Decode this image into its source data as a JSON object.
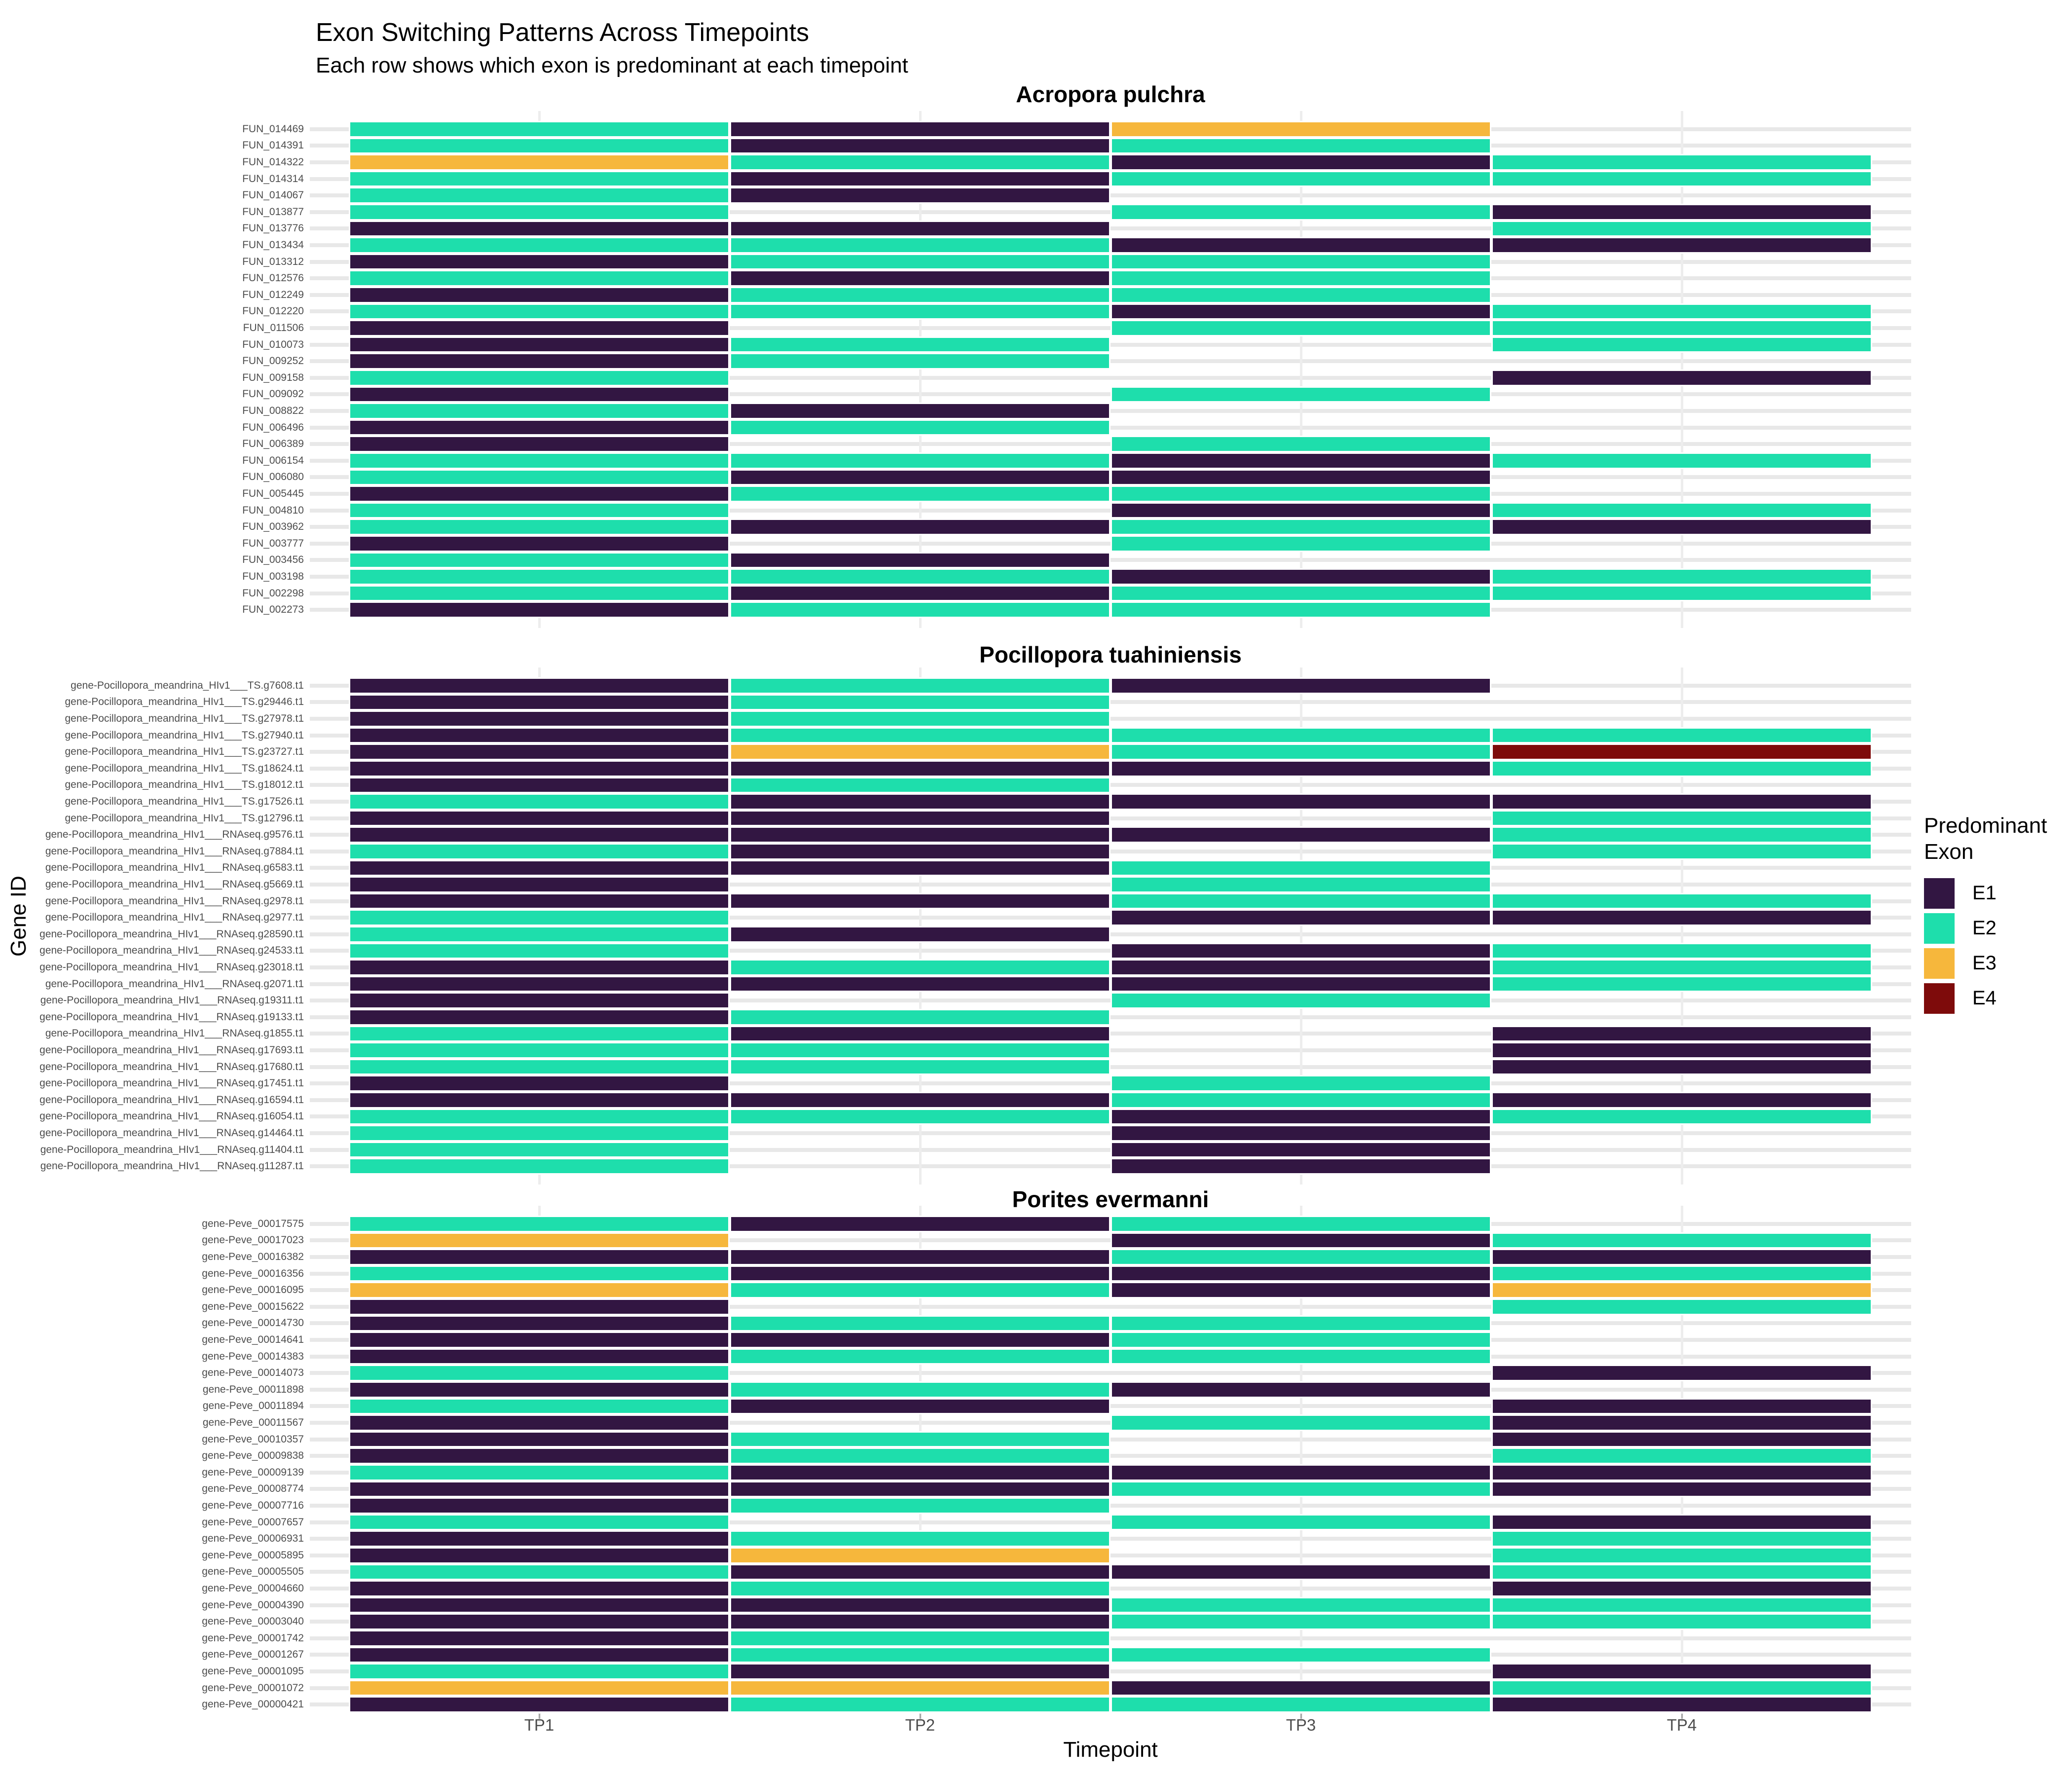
{
  "title": "Exon Switching Patterns Across Timepoints",
  "subtitle": "Each row shows which exon is predominant at each timepoint",
  "x_axis": {
    "title": "Timepoint",
    "ticks": [
      "TP1",
      "TP2",
      "TP3",
      "TP4"
    ]
  },
  "y_axis": {
    "title": "Gene ID"
  },
  "palette": {
    "E1": "#321642",
    "E2": "#1EDEAC",
    "E3": "#F6B73C",
    "E4": "#7E0B0B"
  },
  "grid_colors": {
    "horizontal": "#e8e8e8",
    "vertical": "#ededed"
  },
  "legend": {
    "title": "Predominant Exon",
    "entries": [
      {
        "label": "E1",
        "color": "#321642"
      },
      {
        "label": "E2",
        "color": "#1EDEAC"
      },
      {
        "label": "E3",
        "color": "#F6B73C"
      },
      {
        "label": "E4",
        "color": "#7E0B0B"
      }
    ]
  },
  "chart_data": {
    "type": "heatmap",
    "x": [
      "TP1",
      "TP2",
      "TP3",
      "TP4"
    ],
    "xlabel": "Timepoint",
    "ylabel": "Gene ID",
    "legend_title": "Predominant Exon",
    "legend_position": "right",
    "categories": [
      "E1",
      "E2",
      "E3",
      "E4"
    ],
    "missing_cells": "blank (no tile, gridlines visible)",
    "panels": [
      {
        "title": "Acropora pulchra",
        "rows": [
          {
            "gene": "FUN_014469",
            "values": [
              "E2",
              "E1",
              "E3",
              null
            ]
          },
          {
            "gene": "FUN_014391",
            "values": [
              "E2",
              "E1",
              "E2",
              null
            ]
          },
          {
            "gene": "FUN_014322",
            "values": [
              "E3",
              "E2",
              "E1",
              "E2"
            ]
          },
          {
            "gene": "FUN_014314",
            "values": [
              "E2",
              "E1",
              "E2",
              "E2"
            ]
          },
          {
            "gene": "FUN_014067",
            "values": [
              "E2",
              "E1",
              null,
              null
            ]
          },
          {
            "gene": "FUN_013877",
            "values": [
              "E2",
              null,
              "E2",
              "E1"
            ]
          },
          {
            "gene": "FUN_013776",
            "values": [
              "E1",
              "E1",
              null,
              "E2"
            ]
          },
          {
            "gene": "FUN_013434",
            "values": [
              "E2",
              "E2",
              "E1",
              "E1"
            ]
          },
          {
            "gene": "FUN_013312",
            "values": [
              "E1",
              "E2",
              "E2",
              null
            ]
          },
          {
            "gene": "FUN_012576",
            "values": [
              "E2",
              "E1",
              "E2",
              null
            ]
          },
          {
            "gene": "FUN_012249",
            "values": [
              "E1",
              "E2",
              "E2",
              null
            ]
          },
          {
            "gene": "FUN_012220",
            "values": [
              "E2",
              "E2",
              "E1",
              "E2"
            ]
          },
          {
            "gene": "FUN_011506",
            "values": [
              "E1",
              null,
              "E2",
              "E2"
            ]
          },
          {
            "gene": "FUN_010073",
            "values": [
              "E1",
              "E2",
              null,
              "E2"
            ]
          },
          {
            "gene": "FUN_009252",
            "values": [
              "E1",
              "E2",
              null,
              null
            ]
          },
          {
            "gene": "FUN_009158",
            "values": [
              "E2",
              null,
              null,
              "E1"
            ]
          },
          {
            "gene": "FUN_009092",
            "values": [
              "E1",
              null,
              "E2",
              null
            ]
          },
          {
            "gene": "FUN_008822",
            "values": [
              "E2",
              "E1",
              null,
              null
            ]
          },
          {
            "gene": "FUN_006496",
            "values": [
              "E1",
              "E2",
              null,
              null
            ]
          },
          {
            "gene": "FUN_006389",
            "values": [
              "E1",
              null,
              "E2",
              null
            ]
          },
          {
            "gene": "FUN_006154",
            "values": [
              "E2",
              "E2",
              "E1",
              "E2"
            ]
          },
          {
            "gene": "FUN_006080",
            "values": [
              "E2",
              "E1",
              "E1",
              null
            ]
          },
          {
            "gene": "FUN_005445",
            "values": [
              "E1",
              "E2",
              "E2",
              null
            ]
          },
          {
            "gene": "FUN_004810",
            "values": [
              "E2",
              null,
              "E1",
              "E2"
            ]
          },
          {
            "gene": "FUN_003962",
            "values": [
              "E2",
              "E1",
              "E2",
              "E1"
            ]
          },
          {
            "gene": "FUN_003777",
            "values": [
              "E1",
              null,
              "E2",
              null
            ]
          },
          {
            "gene": "FUN_003456",
            "values": [
              "E2",
              "E1",
              null,
              null
            ]
          },
          {
            "gene": "FUN_003198",
            "values": [
              "E2",
              "E2",
              "E1",
              "E2"
            ]
          },
          {
            "gene": "FUN_002298",
            "values": [
              "E2",
              "E1",
              "E2",
              "E2"
            ]
          },
          {
            "gene": "FUN_002273",
            "values": [
              "E1",
              "E2",
              "E2",
              null
            ]
          }
        ]
      },
      {
        "title": "Pocillopora tuahiniensis",
        "rows": [
          {
            "gene": "gene-Pocillopora_meandrina_HIv1___TS.g7608.t1",
            "values": [
              "E1",
              "E2",
              "E1",
              null
            ]
          },
          {
            "gene": "gene-Pocillopora_meandrina_HIv1___TS.g29446.t1",
            "values": [
              "E1",
              "E2",
              null,
              null
            ]
          },
          {
            "gene": "gene-Pocillopora_meandrina_HIv1___TS.g27978.t1",
            "values": [
              "E1",
              "E2",
              null,
              null
            ]
          },
          {
            "gene": "gene-Pocillopora_meandrina_HIv1___TS.g27940.t1",
            "values": [
              "E1",
              "E2",
              "E2",
              "E2"
            ]
          },
          {
            "gene": "gene-Pocillopora_meandrina_HIv1___TS.g23727.t1",
            "values": [
              "E1",
              "E3",
              "E2",
              "E4"
            ]
          },
          {
            "gene": "gene-Pocillopora_meandrina_HIv1___TS.g18624.t1",
            "values": [
              "E1",
              "E1",
              "E1",
              "E2"
            ]
          },
          {
            "gene": "gene-Pocillopora_meandrina_HIv1___TS.g18012.t1",
            "values": [
              "E1",
              "E2",
              null,
              null
            ]
          },
          {
            "gene": "gene-Pocillopora_meandrina_HIv1___TS.g17526.t1",
            "values": [
              "E2",
              "E1",
              "E1",
              "E1"
            ]
          },
          {
            "gene": "gene-Pocillopora_meandrina_HIv1___TS.g12796.t1",
            "values": [
              "E1",
              "E1",
              null,
              "E2"
            ]
          },
          {
            "gene": "gene-Pocillopora_meandrina_HIv1___RNAseq.g9576.t1",
            "values": [
              "E1",
              "E1",
              "E1",
              "E2"
            ]
          },
          {
            "gene": "gene-Pocillopora_meandrina_HIv1___RNAseq.g7884.t1",
            "values": [
              "E2",
              "E1",
              null,
              "E2"
            ]
          },
          {
            "gene": "gene-Pocillopora_meandrina_HIv1___RNAseq.g6583.t1",
            "values": [
              "E1",
              "E1",
              "E2",
              null
            ]
          },
          {
            "gene": "gene-Pocillopora_meandrina_HIv1___RNAseq.g5669.t1",
            "values": [
              "E1",
              null,
              "E2",
              null
            ]
          },
          {
            "gene": "gene-Pocillopora_meandrina_HIv1___RNAseq.g2978.t1",
            "values": [
              "E1",
              "E1",
              "E2",
              "E2"
            ]
          },
          {
            "gene": "gene-Pocillopora_meandrina_HIv1___RNAseq.g2977.t1",
            "values": [
              "E2",
              null,
              "E1",
              "E1"
            ]
          },
          {
            "gene": "gene-Pocillopora_meandrina_HIv1___RNAseq.g28590.t1",
            "values": [
              "E2",
              "E1",
              null,
              null
            ]
          },
          {
            "gene": "gene-Pocillopora_meandrina_HIv1___RNAseq.g24533.t1",
            "values": [
              "E2",
              null,
              "E1",
              "E2"
            ]
          },
          {
            "gene": "gene-Pocillopora_meandrina_HIv1___RNAseq.g23018.t1",
            "values": [
              "E1",
              "E2",
              "E1",
              "E2"
            ]
          },
          {
            "gene": "gene-Pocillopora_meandrina_HIv1___RNAseq.g2071.t1",
            "values": [
              "E1",
              "E1",
              "E1",
              "E2"
            ]
          },
          {
            "gene": "gene-Pocillopora_meandrina_HIv1___RNAseq.g19311.t1",
            "values": [
              "E1",
              null,
              "E2",
              null
            ]
          },
          {
            "gene": "gene-Pocillopora_meandrina_HIv1___RNAseq.g19133.t1",
            "values": [
              "E1",
              "E2",
              null,
              null
            ]
          },
          {
            "gene": "gene-Pocillopora_meandrina_HIv1___RNAseq.g1855.t1",
            "values": [
              "E2",
              "E1",
              null,
              "E1"
            ]
          },
          {
            "gene": "gene-Pocillopora_meandrina_HIv1___RNAseq.g17693.t1",
            "values": [
              "E2",
              "E2",
              null,
              "E1"
            ]
          },
          {
            "gene": "gene-Pocillopora_meandrina_HIv1___RNAseq.g17680.t1",
            "values": [
              "E2",
              "E2",
              null,
              "E1"
            ]
          },
          {
            "gene": "gene-Pocillopora_meandrina_HIv1___RNAseq.g17451.t1",
            "values": [
              "E1",
              null,
              "E2",
              null
            ]
          },
          {
            "gene": "gene-Pocillopora_meandrina_HIv1___RNAseq.g16594.t1",
            "values": [
              "E1",
              "E1",
              "E2",
              "E1"
            ]
          },
          {
            "gene": "gene-Pocillopora_meandrina_HIv1___RNAseq.g16054.t1",
            "values": [
              "E2",
              "E2",
              "E1",
              "E2"
            ]
          },
          {
            "gene": "gene-Pocillopora_meandrina_HIv1___RNAseq.g14464.t1",
            "values": [
              "E2",
              null,
              "E1",
              null
            ]
          },
          {
            "gene": "gene-Pocillopora_meandrina_HIv1___RNAseq.g11404.t1",
            "values": [
              "E2",
              null,
              "E1",
              null
            ]
          },
          {
            "gene": "gene-Pocillopora_meandrina_HIv1___RNAseq.g11287.t1",
            "values": [
              "E2",
              null,
              "E1",
              null
            ]
          }
        ]
      },
      {
        "title": "Porites evermanni",
        "rows": [
          {
            "gene": "gene-Peve_00017575",
            "values": [
              "E2",
              "E1",
              "E2",
              null
            ]
          },
          {
            "gene": "gene-Peve_00017023",
            "values": [
              "E3",
              null,
              "E1",
              "E2"
            ]
          },
          {
            "gene": "gene-Peve_00016382",
            "values": [
              "E1",
              "E1",
              "E2",
              "E1"
            ]
          },
          {
            "gene": "gene-Peve_00016356",
            "values": [
              "E2",
              "E1",
              "E1",
              "E2"
            ]
          },
          {
            "gene": "gene-Peve_00016095",
            "values": [
              "E3",
              "E2",
              "E1",
              "E3"
            ]
          },
          {
            "gene": "gene-Peve_00015622",
            "values": [
              "E1",
              null,
              null,
              "E2"
            ]
          },
          {
            "gene": "gene-Peve_00014730",
            "values": [
              "E1",
              "E2",
              "E2",
              null
            ]
          },
          {
            "gene": "gene-Peve_00014641",
            "values": [
              "E1",
              "E1",
              "E2",
              null
            ]
          },
          {
            "gene": "gene-Peve_00014383",
            "values": [
              "E1",
              "E2",
              "E2",
              null
            ]
          },
          {
            "gene": "gene-Peve_00014073",
            "values": [
              "E2",
              null,
              null,
              "E1"
            ]
          },
          {
            "gene": "gene-Peve_00011898",
            "values": [
              "E1",
              "E2",
              "E1",
              null
            ]
          },
          {
            "gene": "gene-Peve_00011894",
            "values": [
              "E2",
              "E1",
              null,
              "E1"
            ]
          },
          {
            "gene": "gene-Peve_00011567",
            "values": [
              "E1",
              null,
              "E2",
              "E1"
            ]
          },
          {
            "gene": "gene-Peve_00010357",
            "values": [
              "E1",
              "E2",
              null,
              "E1"
            ]
          },
          {
            "gene": "gene-Peve_00009838",
            "values": [
              "E1",
              "E2",
              null,
              "E2"
            ]
          },
          {
            "gene": "gene-Peve_00009139",
            "values": [
              "E2",
              "E1",
              "E1",
              "E1"
            ]
          },
          {
            "gene": "gene-Peve_00008774",
            "values": [
              "E1",
              "E1",
              "E2",
              "E1"
            ]
          },
          {
            "gene": "gene-Peve_00007716",
            "values": [
              "E1",
              "E2",
              null,
              null
            ]
          },
          {
            "gene": "gene-Peve_00007657",
            "values": [
              "E2",
              null,
              "E2",
              "E1"
            ]
          },
          {
            "gene": "gene-Peve_00006931",
            "values": [
              "E1",
              "E2",
              null,
              "E2"
            ]
          },
          {
            "gene": "gene-Peve_00005895",
            "values": [
              "E1",
              "E3",
              null,
              "E2"
            ]
          },
          {
            "gene": "gene-Peve_00005505",
            "values": [
              "E2",
              "E1",
              "E1",
              "E2"
            ]
          },
          {
            "gene": "gene-Peve_00004660",
            "values": [
              "E1",
              "E2",
              null,
              "E1"
            ]
          },
          {
            "gene": "gene-Peve_00004390",
            "values": [
              "E1",
              "E1",
              "E2",
              "E2"
            ]
          },
          {
            "gene": "gene-Peve_00003040",
            "values": [
              "E1",
              "E1",
              "E2",
              "E2"
            ]
          },
          {
            "gene": "gene-Peve_00001742",
            "values": [
              "E1",
              "E2",
              null,
              null
            ]
          },
          {
            "gene": "gene-Peve_00001267",
            "values": [
              "E1",
              "E2",
              "E2",
              null
            ]
          },
          {
            "gene": "gene-Peve_00001095",
            "values": [
              "E2",
              "E1",
              null,
              "E1"
            ]
          },
          {
            "gene": "gene-Peve_00001072",
            "values": [
              "E3",
              "E3",
              "E1",
              "E2"
            ]
          },
          {
            "gene": "gene-Peve_00000421",
            "values": [
              "E1",
              "E2",
              "E2",
              "E1"
            ]
          }
        ]
      }
    ]
  }
}
